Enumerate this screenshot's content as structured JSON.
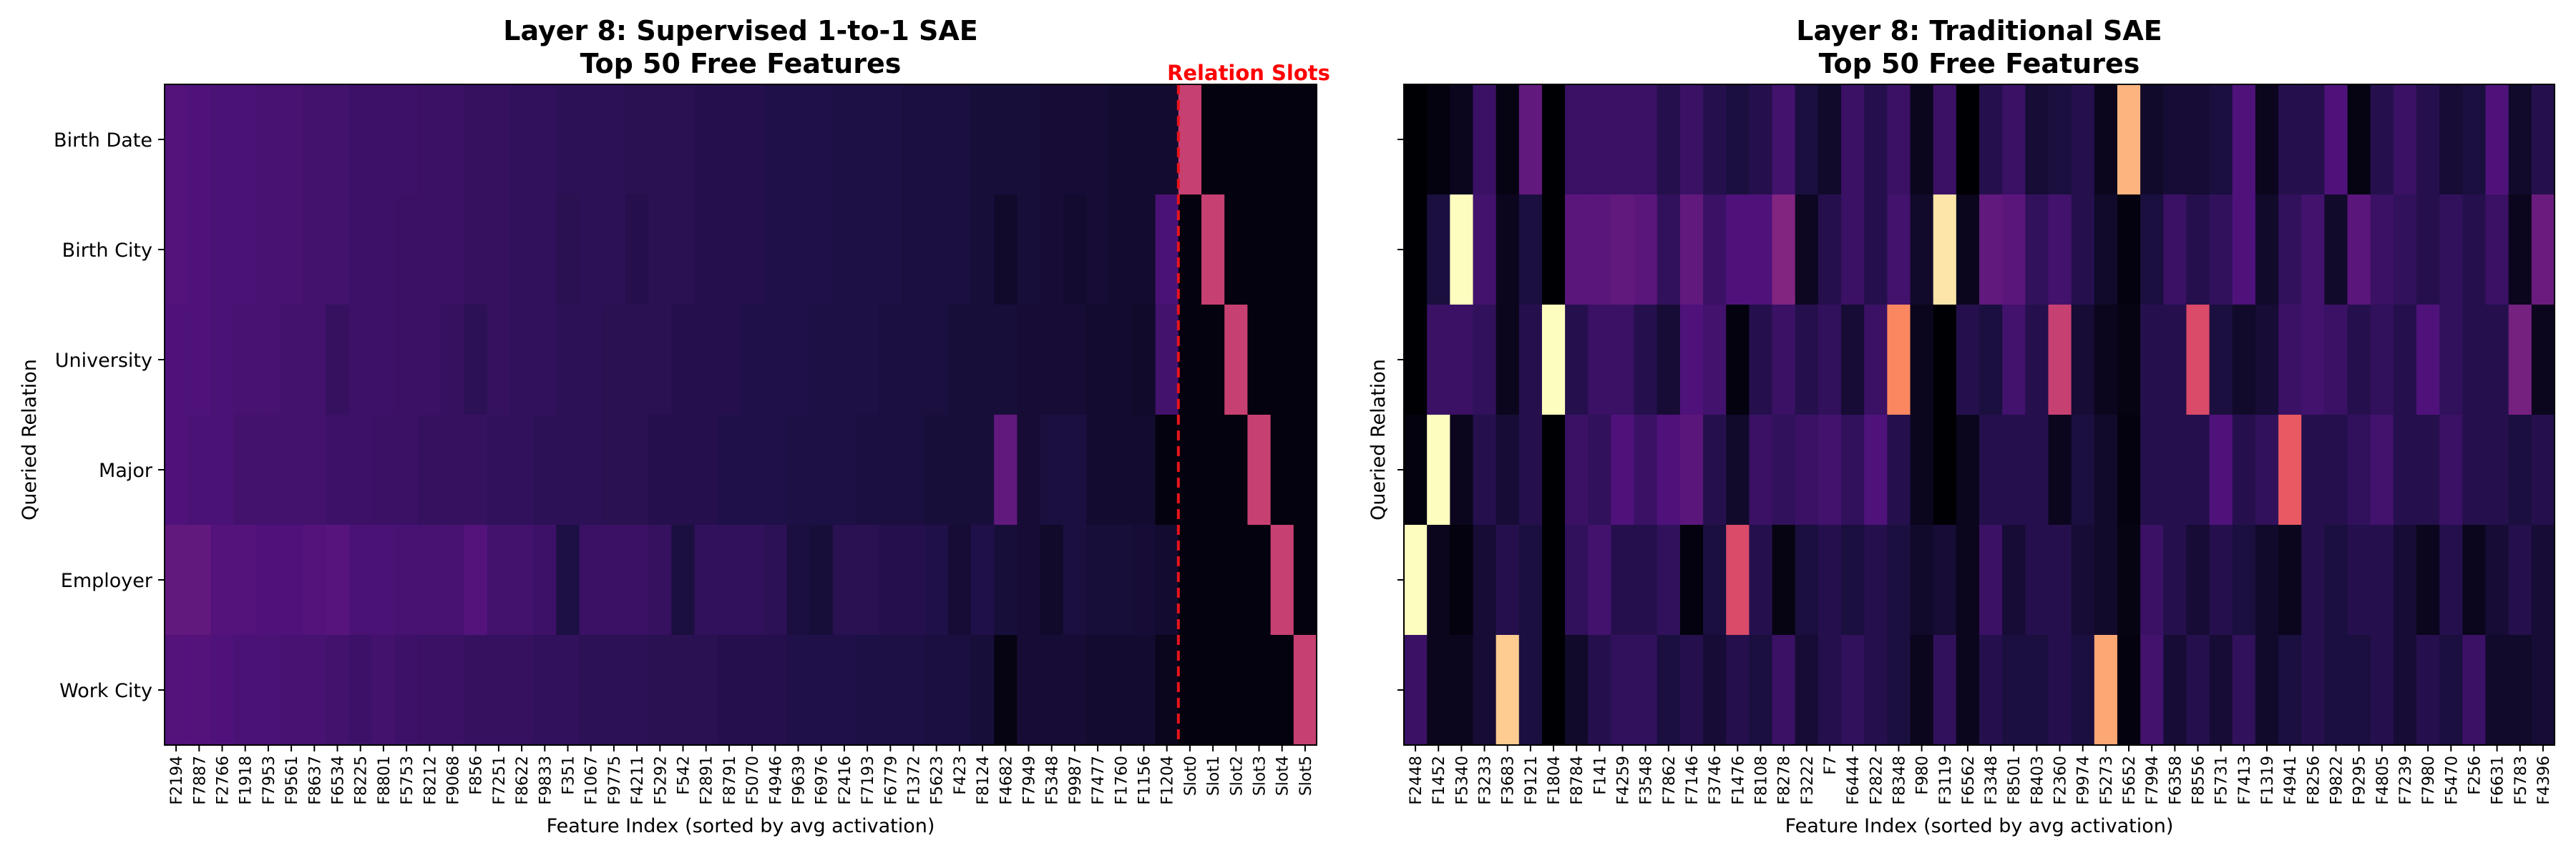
{
  "chart_data": [
    {
      "type": "heatmap",
      "title_line1": "Layer 8: Supervised 1-to-1 SAE",
      "title_line2": "Top 50 Free Features",
      "xlabel": "Feature Index (sorted by avg activation)",
      "ylabel": "Queried Relation",
      "annotation": "Relation Slots",
      "colormap": "magma",
      "rows": [
        "Birth Date",
        "Birth City",
        "University",
        "Major",
        "Employer",
        "Work City"
      ],
      "columns": [
        "F2194",
        "F7887",
        "F2766",
        "F1918",
        "F7953",
        "F9561",
        "F8637",
        "F6534",
        "F8225",
        "F8801",
        "F5753",
        "F8212",
        "F9068",
        "F856",
        "F7251",
        "F8622",
        "F9833",
        "F351",
        "F1067",
        "F9775",
        "F4211",
        "F5292",
        "F542",
        "F2891",
        "F8791",
        "F5070",
        "F4946",
        "F9639",
        "F6976",
        "F2416",
        "F7193",
        "F6779",
        "F1372",
        "F5623",
        "F423",
        "F8124",
        "F4682",
        "F7949",
        "F5348",
        "F9987",
        "F7477",
        "F1760",
        "F1156",
        "F1204",
        "Slot0",
        "Slot1",
        "Slot2",
        "Slot3",
        "Slot4",
        "Slot5"
      ],
      "values": [
        [
          0.26,
          0.25,
          0.24,
          0.24,
          0.23,
          0.23,
          0.22,
          0.22,
          0.21,
          0.21,
          0.21,
          0.2,
          0.2,
          0.19,
          0.19,
          0.18,
          0.18,
          0.17,
          0.17,
          0.17,
          0.16,
          0.16,
          0.16,
          0.15,
          0.15,
          0.15,
          0.14,
          0.14,
          0.14,
          0.13,
          0.13,
          0.13,
          0.12,
          0.12,
          0.12,
          0.11,
          0.11,
          0.11,
          0.1,
          0.1,
          0.1,
          0.09,
          0.09,
          0.09,
          0.55,
          0.02,
          0.02,
          0.02,
          0.02,
          0.02
        ],
        [
          0.26,
          0.25,
          0.24,
          0.24,
          0.23,
          0.23,
          0.22,
          0.22,
          0.21,
          0.21,
          0.2,
          0.2,
          0.2,
          0.19,
          0.19,
          0.18,
          0.18,
          0.16,
          0.17,
          0.17,
          0.15,
          0.16,
          0.16,
          0.15,
          0.15,
          0.15,
          0.14,
          0.14,
          0.14,
          0.13,
          0.13,
          0.13,
          0.12,
          0.12,
          0.12,
          0.11,
          0.08,
          0.11,
          0.1,
          0.09,
          0.1,
          0.09,
          0.09,
          0.24,
          0.02,
          0.55,
          0.02,
          0.02,
          0.02,
          0.02
        ],
        [
          0.25,
          0.25,
          0.24,
          0.23,
          0.23,
          0.22,
          0.22,
          0.19,
          0.21,
          0.21,
          0.2,
          0.2,
          0.19,
          0.17,
          0.19,
          0.18,
          0.18,
          0.17,
          0.17,
          0.16,
          0.16,
          0.16,
          0.15,
          0.15,
          0.15,
          0.14,
          0.14,
          0.14,
          0.13,
          0.13,
          0.13,
          0.12,
          0.12,
          0.12,
          0.11,
          0.11,
          0.11,
          0.1,
          0.1,
          0.1,
          0.09,
          0.09,
          0.08,
          0.22,
          0.02,
          0.02,
          0.55,
          0.02,
          0.02,
          0.02
        ],
        [
          0.25,
          0.24,
          0.24,
          0.22,
          0.22,
          0.22,
          0.22,
          0.21,
          0.21,
          0.2,
          0.2,
          0.19,
          0.19,
          0.19,
          0.18,
          0.18,
          0.17,
          0.17,
          0.17,
          0.16,
          0.16,
          0.15,
          0.15,
          0.15,
          0.14,
          0.14,
          0.14,
          0.13,
          0.13,
          0.13,
          0.12,
          0.12,
          0.12,
          0.11,
          0.11,
          0.11,
          0.3,
          0.1,
          0.12,
          0.12,
          0.09,
          0.09,
          0.09,
          0.02,
          0.02,
          0.02,
          0.02,
          0.55,
          0.02,
          0.02
        ],
        [
          0.3,
          0.3,
          0.26,
          0.26,
          0.25,
          0.25,
          0.26,
          0.27,
          0.24,
          0.24,
          0.23,
          0.23,
          0.23,
          0.26,
          0.22,
          0.22,
          0.21,
          0.13,
          0.2,
          0.2,
          0.2,
          0.19,
          0.12,
          0.18,
          0.18,
          0.18,
          0.17,
          0.12,
          0.11,
          0.16,
          0.16,
          0.15,
          0.15,
          0.14,
          0.1,
          0.14,
          0.11,
          0.1,
          0.08,
          0.12,
          0.11,
          0.11,
          0.1,
          0.09,
          0.02,
          0.02,
          0.02,
          0.02,
          0.55,
          0.02
        ],
        [
          0.26,
          0.26,
          0.25,
          0.24,
          0.24,
          0.23,
          0.23,
          0.22,
          0.21,
          0.22,
          0.21,
          0.2,
          0.2,
          0.19,
          0.19,
          0.19,
          0.18,
          0.18,
          0.17,
          0.17,
          0.17,
          0.16,
          0.16,
          0.16,
          0.15,
          0.15,
          0.15,
          0.14,
          0.14,
          0.14,
          0.13,
          0.13,
          0.13,
          0.12,
          0.12,
          0.11,
          0.03,
          0.1,
          0.1,
          0.1,
          0.09,
          0.09,
          0.09,
          0.05,
          0.02,
          0.02,
          0.02,
          0.02,
          0.02,
          0.55
        ]
      ]
    },
    {
      "type": "heatmap",
      "title_line1": "Layer 8: Traditional SAE",
      "title_line2": "Top 50 Free Features",
      "xlabel": "Feature Index (sorted by avg activation)",
      "ylabel": "Queried Relation",
      "colormap": "magma",
      "rows": [
        "Birth Date",
        "Birth City",
        "University",
        "Major",
        "Employer",
        "Work City"
      ],
      "columns": [
        "F2448",
        "F1452",
        "F5340",
        "F3233",
        "F3683",
        "F9121",
        "F1804",
        "F8784",
        "F141",
        "F4259",
        "F3548",
        "F7862",
        "F7146",
        "F3746",
        "F1476",
        "F8108",
        "F8278",
        "F3222",
        "F7",
        "F6444",
        "F2822",
        "F8348",
        "F980",
        "F3119",
        "F6562",
        "F3348",
        "F8501",
        "F8403",
        "F2360",
        "F9974",
        "F5273",
        "F5652",
        "F7994",
        "F6358",
        "F8556",
        "F5731",
        "F7413",
        "F1319",
        "F4941",
        "F8256",
        "F9822",
        "F9295",
        "F4805",
        "F7239",
        "F7980",
        "F5470",
        "F256",
        "F6631",
        "F5783",
        "F4396"
      ],
      "values": [
        [
          0.0,
          0.02,
          0.05,
          0.2,
          0.03,
          0.3,
          0.0,
          0.2,
          0.2,
          0.2,
          0.2,
          0.15,
          0.2,
          0.15,
          0.12,
          0.15,
          0.22,
          0.12,
          0.08,
          0.2,
          0.15,
          0.2,
          0.05,
          0.2,
          0.0,
          0.15,
          0.2,
          0.1,
          0.12,
          0.15,
          0.05,
          0.85,
          0.08,
          0.1,
          0.1,
          0.12,
          0.25,
          0.05,
          0.15,
          0.15,
          0.25,
          0.03,
          0.15,
          0.2,
          0.15,
          0.1,
          0.12,
          0.25,
          0.08,
          0.15
        ],
        [
          0.0,
          0.12,
          1.0,
          0.22,
          0.05,
          0.12,
          0.0,
          0.28,
          0.28,
          0.3,
          0.28,
          0.18,
          0.3,
          0.2,
          0.25,
          0.25,
          0.38,
          0.06,
          0.15,
          0.2,
          0.15,
          0.22,
          0.08,
          0.95,
          0.05,
          0.3,
          0.28,
          0.18,
          0.22,
          0.15,
          0.08,
          0.02,
          0.12,
          0.2,
          0.15,
          0.18,
          0.25,
          0.08,
          0.18,
          0.22,
          0.08,
          0.28,
          0.2,
          0.18,
          0.15,
          0.18,
          0.15,
          0.2,
          0.05,
          0.32
        ],
        [
          0.0,
          0.2,
          0.2,
          0.18,
          0.05,
          0.15,
          1.0,
          0.15,
          0.2,
          0.2,
          0.15,
          0.1,
          0.25,
          0.22,
          0.02,
          0.15,
          0.2,
          0.15,
          0.18,
          0.1,
          0.2,
          0.75,
          0.05,
          0.0,
          0.15,
          0.12,
          0.22,
          0.15,
          0.55,
          0.1,
          0.05,
          0.03,
          0.15,
          0.15,
          0.6,
          0.12,
          0.08,
          0.1,
          0.2,
          0.22,
          0.2,
          0.15,
          0.18,
          0.15,
          0.25,
          0.18,
          0.15,
          0.15,
          0.35,
          0.05
        ],
        [
          0.02,
          1.0,
          0.05,
          0.15,
          0.1,
          0.15,
          0.0,
          0.2,
          0.18,
          0.25,
          0.2,
          0.25,
          0.28,
          0.15,
          0.08,
          0.2,
          0.18,
          0.2,
          0.22,
          0.18,
          0.25,
          0.15,
          0.05,
          0.0,
          0.05,
          0.15,
          0.15,
          0.15,
          0.05,
          0.12,
          0.08,
          0.02,
          0.15,
          0.15,
          0.15,
          0.25,
          0.15,
          0.18,
          0.65,
          0.15,
          0.15,
          0.18,
          0.22,
          0.15,
          0.15,
          0.2,
          0.15,
          0.15,
          0.12,
          0.15
        ],
        [
          1.0,
          0.05,
          0.02,
          0.1,
          0.15,
          0.12,
          0.0,
          0.18,
          0.22,
          0.15,
          0.15,
          0.18,
          0.02,
          0.12,
          0.6,
          0.15,
          0.03,
          0.12,
          0.15,
          0.12,
          0.15,
          0.12,
          0.08,
          0.1,
          0.05,
          0.2,
          0.1,
          0.15,
          0.15,
          0.1,
          0.08,
          0.03,
          0.2,
          0.15,
          0.1,
          0.15,
          0.12,
          0.08,
          0.05,
          0.15,
          0.12,
          0.15,
          0.15,
          0.1,
          0.05,
          0.15,
          0.05,
          0.1,
          0.15,
          0.1
        ],
        [
          0.2,
          0.05,
          0.05,
          0.1,
          0.9,
          0.12,
          0.0,
          0.08,
          0.15,
          0.18,
          0.18,
          0.12,
          0.15,
          0.1,
          0.15,
          0.12,
          0.2,
          0.1,
          0.15,
          0.18,
          0.15,
          0.12,
          0.05,
          0.18,
          0.05,
          0.15,
          0.12,
          0.12,
          0.15,
          0.12,
          0.82,
          0.02,
          0.22,
          0.1,
          0.15,
          0.1,
          0.18,
          0.08,
          0.12,
          0.15,
          0.12,
          0.12,
          0.15,
          0.1,
          0.15,
          0.12,
          0.2,
          0.08,
          0.08,
          0.1
        ]
      ]
    }
  ]
}
